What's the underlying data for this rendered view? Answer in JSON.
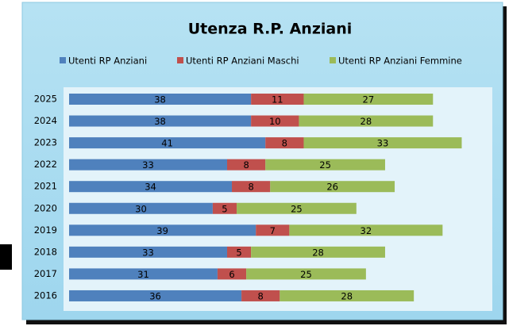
{
  "chart_data": {
    "type": "bar",
    "orientation": "horizontal",
    "stacked": true,
    "title": "Utenza R.P. Anziani",
    "categories": [
      "2025",
      "2024",
      "2023",
      "2022",
      "2021",
      "2020",
      "2019",
      "2018",
      "2017",
      "2016"
    ],
    "series": [
      {
        "name": "Utenti RP Anziani",
        "color": "#4f81bd",
        "values": [
          38,
          38,
          41,
          33,
          34,
          30,
          39,
          33,
          31,
          36
        ]
      },
      {
        "name": "Utenti RP Anziani Maschi",
        "color": "#c0504d",
        "values": [
          11,
          10,
          8,
          8,
          8,
          5,
          7,
          5,
          6,
          8
        ]
      },
      {
        "name": "Utenti RP Anziani  Femmine",
        "color": "#9bbb59",
        "values": [
          27,
          28,
          33,
          25,
          26,
          25,
          32,
          28,
          25,
          28
        ]
      }
    ],
    "legend": "top",
    "data_labels": true
  }
}
